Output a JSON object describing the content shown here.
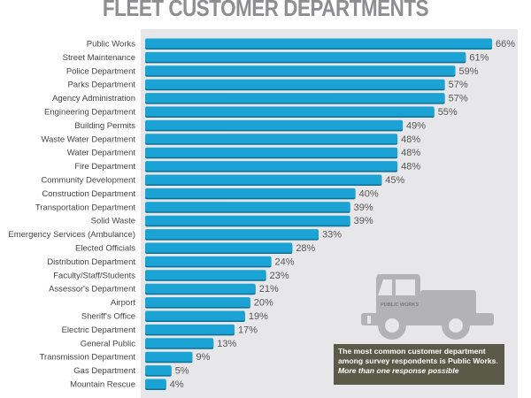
{
  "chart_data": {
    "type": "bar",
    "orientation": "horizontal",
    "title": "FLEET CUSTOMER DEPARTMENTS",
    "xlabel": "",
    "ylabel": "",
    "value_suffix": "%",
    "xlim": [
      0,
      70
    ],
    "grid": false,
    "categories": [
      "Public Works",
      "Street Maintenance",
      "Police Department",
      "Parks Department",
      "Agency Administration",
      "Engineering Department",
      "Building Permits",
      "Waste Water Department",
      "Water Department",
      "Fire Department",
      "Community Development",
      "Construction Department",
      "Transportation Department",
      "Solid Waste",
      "Emergency Services (Ambulance)",
      "Elected Officials",
      "Distribution Department",
      "Faculty/Staff/Students",
      "Assessor's Department",
      "Airport",
      "Sheriff's Office",
      "Electric Department",
      "General Public",
      "Transmission Department",
      "Gas Department",
      "Mountain Rescue"
    ],
    "values": [
      66,
      61,
      59,
      57,
      57,
      55,
      49,
      48,
      48,
      48,
      45,
      40,
      39,
      39,
      33,
      28,
      24,
      23,
      21,
      20,
      19,
      17,
      13,
      9,
      5,
      4
    ],
    "bar_color": "#1aa3d4",
    "annotation": {
      "line1": "The most common customer department",
      "line2": "among survey respondents is Public Works.",
      "line3": "More than one response possible"
    },
    "illustration": {
      "icon": "truck-icon",
      "door_text": "PUBLIC WORKS"
    }
  }
}
